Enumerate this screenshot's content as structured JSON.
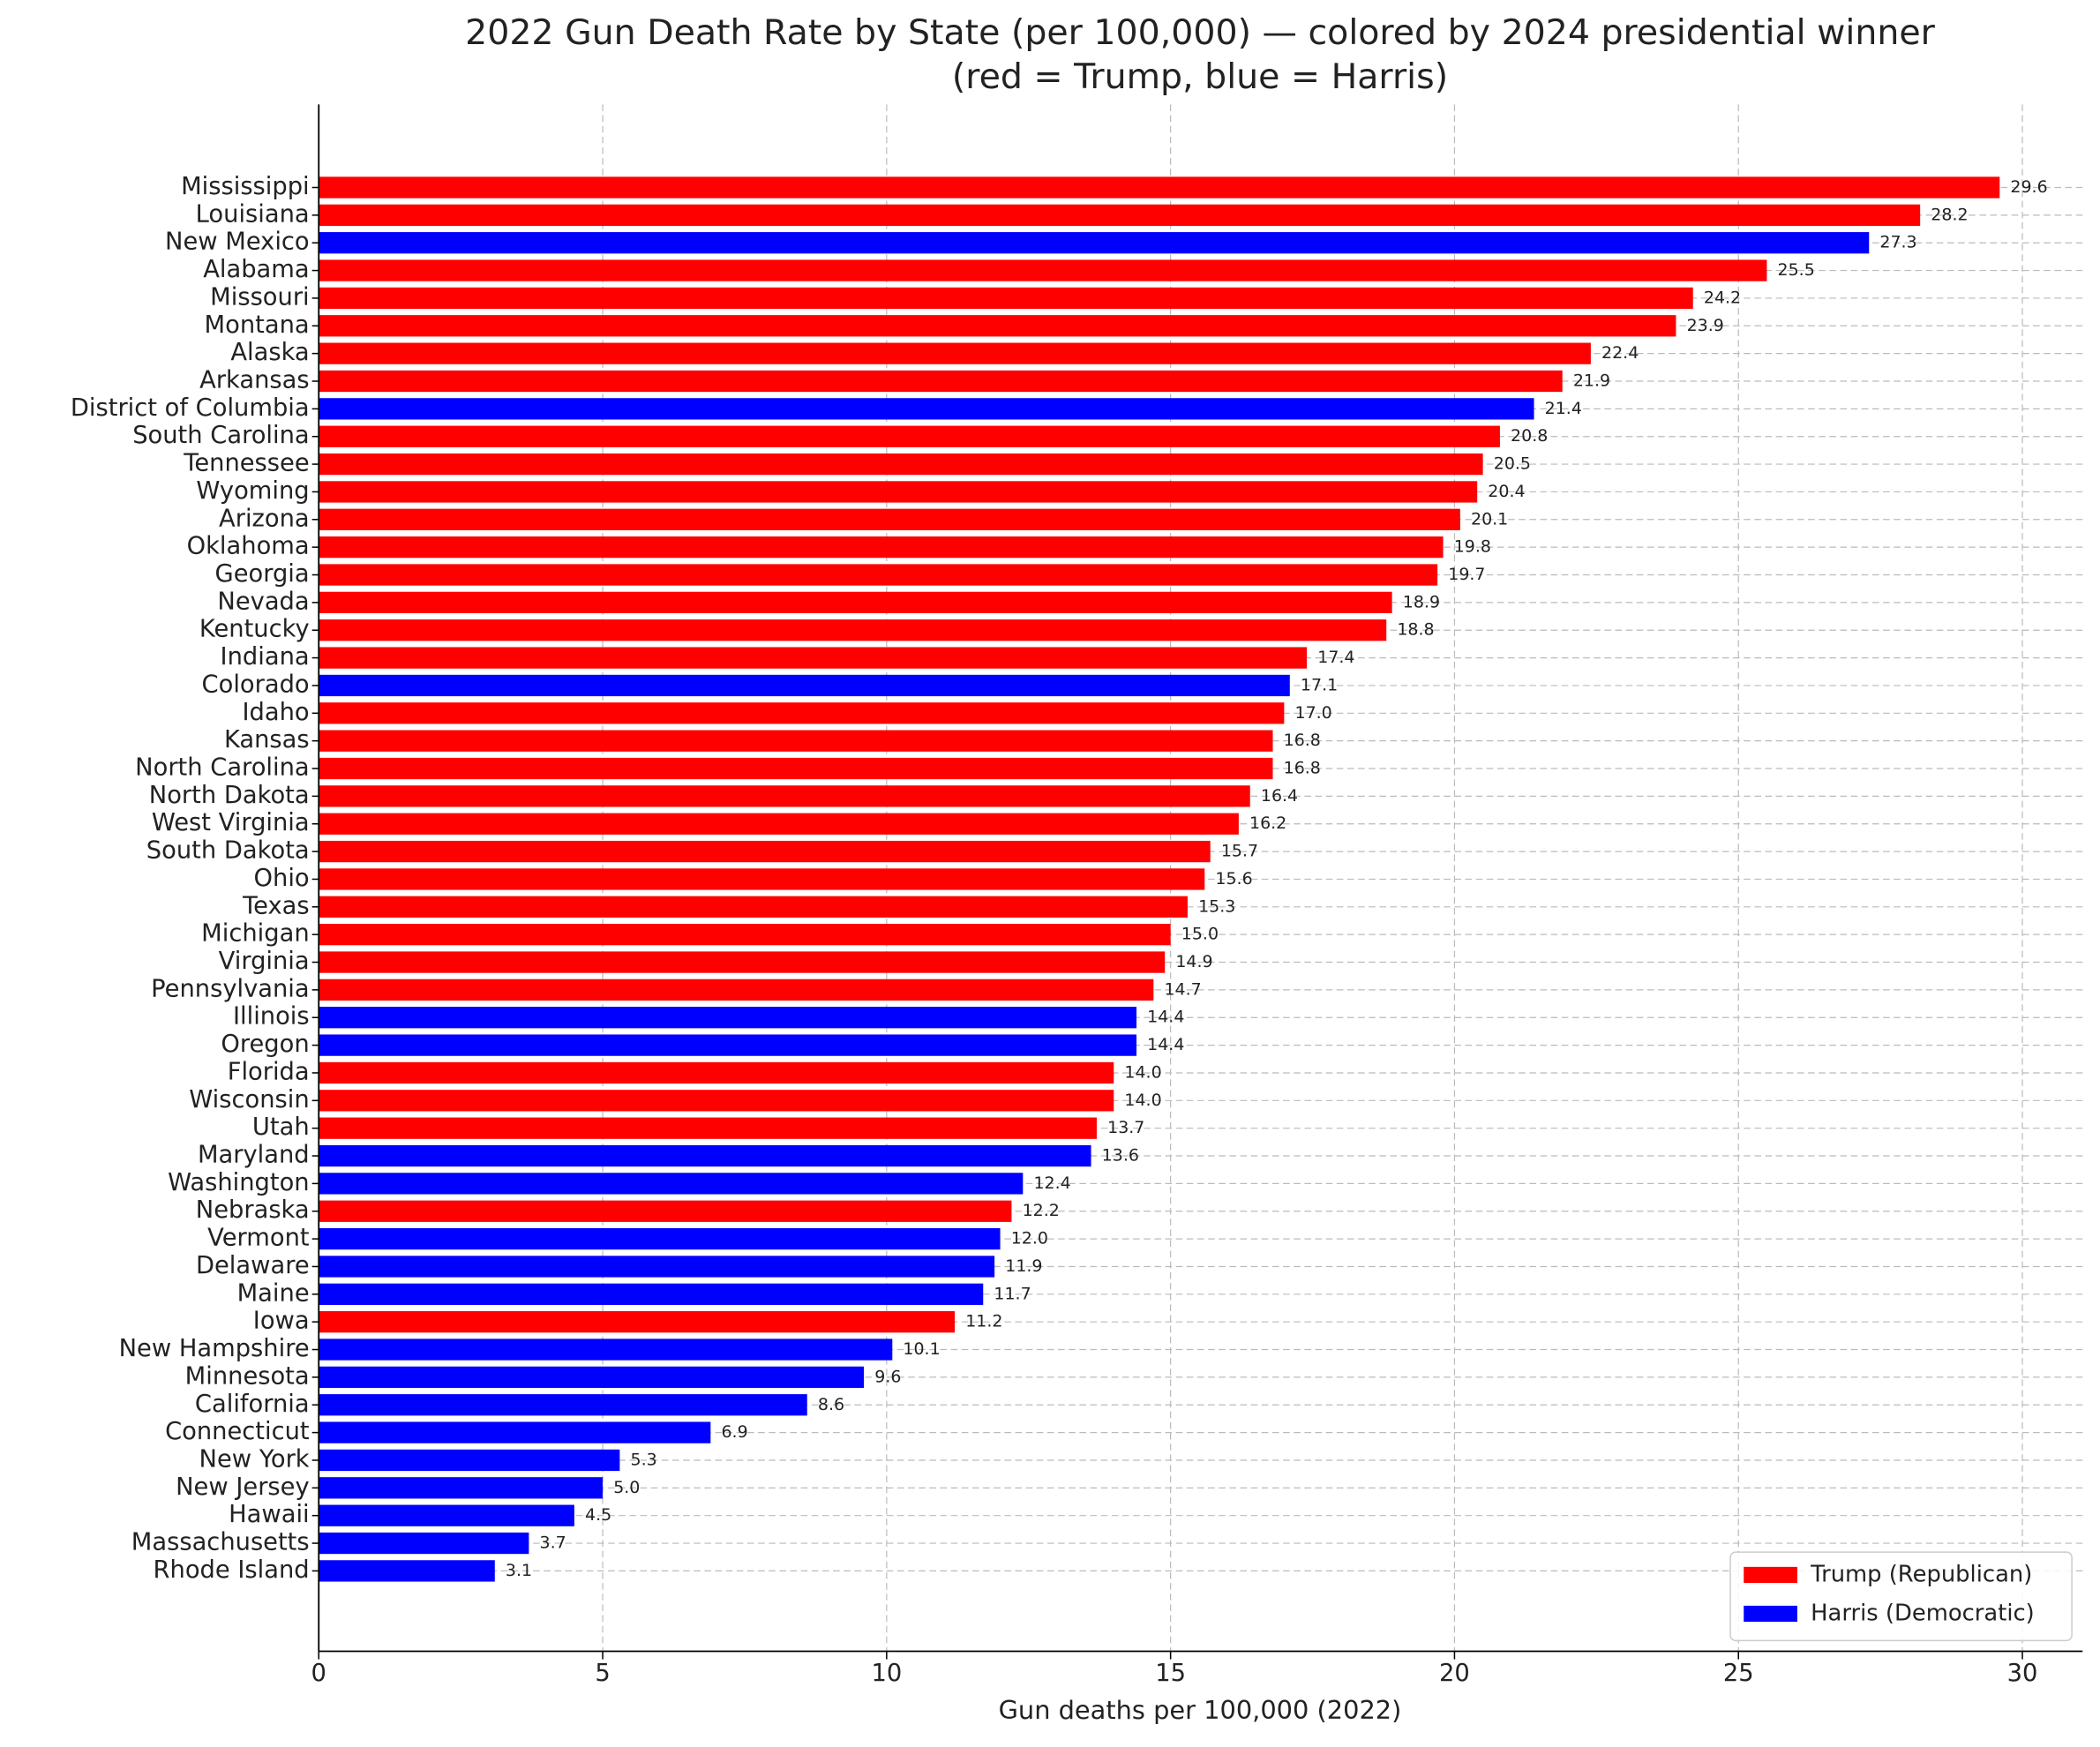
{
  "chart_data": {
    "type": "barh",
    "title": "2022 Gun Death Rate by State (per 100,000) — colored by 2024 presidential winner",
    "subtitle": "(red = Trump, blue = Harris)",
    "xlabel": "Gun deaths per 100,000 (2022)",
    "categories": [
      "Mississippi",
      "Louisiana",
      "New Mexico",
      "Alabama",
      "Missouri",
      "Montana",
      "Alaska",
      "Arkansas",
      "District of Columbia",
      "South Carolina",
      "Tennessee",
      "Wyoming",
      "Arizona",
      "Oklahoma",
      "Georgia",
      "Nevada",
      "Kentucky",
      "Indiana",
      "Colorado",
      "Idaho",
      "Kansas",
      "North Carolina",
      "North Dakota",
      "West Virginia",
      "South Dakota",
      "Ohio",
      "Texas",
      "Michigan",
      "Virginia",
      "Pennsylvania",
      "Illinois",
      "Oregon",
      "Florida",
      "Wisconsin",
      "Utah",
      "Maryland",
      "Washington",
      "Nebraska",
      "Vermont",
      "Delaware",
      "Maine",
      "Iowa",
      "New Hampshire",
      "Minnesota",
      "California",
      "Connecticut",
      "New York",
      "New Jersey",
      "Hawaii",
      "Massachusetts",
      "Rhode Island"
    ],
    "series": [
      {
        "name": "Trump (Republican)",
        "color": "#ff0000",
        "values": [
          29.6,
          28.2,
          null,
          25.5,
          24.2,
          23.9,
          22.4,
          21.9,
          null,
          20.8,
          20.5,
          20.4,
          20.1,
          19.8,
          19.7,
          18.9,
          18.8,
          17.4,
          null,
          17.0,
          16.8,
          16.8,
          16.4,
          16.2,
          15.7,
          15.6,
          15.3,
          15.0,
          14.9,
          14.7,
          null,
          null,
          14.0,
          14.0,
          13.7,
          null,
          null,
          12.2,
          null,
          null,
          null,
          11.2,
          null,
          null,
          null,
          null,
          null,
          null,
          null,
          null,
          null
        ],
        "value_labels": [
          "29.6",
          "28.2",
          null,
          "25.5",
          "24.2",
          "23.9",
          "22.4",
          "21.9",
          null,
          "20.8",
          "20.5",
          "20.4",
          "20.1",
          "19.8",
          "19.7",
          "18.9",
          "18.8",
          "17.4",
          null,
          "17.0",
          "16.8",
          "16.8",
          "16.4",
          "16.2",
          "15.7",
          "15.6",
          "15.3",
          "15.0",
          "14.9",
          "14.7",
          null,
          null,
          "14.0",
          "14.0",
          "13.7",
          null,
          null,
          "12.2",
          null,
          null,
          null,
          "11.2",
          null,
          null,
          null,
          null,
          null,
          null,
          null,
          null,
          null
        ]
      },
      {
        "name": "Harris (Democratic)",
        "color": "#0000ff",
        "values": [
          null,
          null,
          27.3,
          null,
          null,
          null,
          null,
          null,
          21.4,
          null,
          null,
          null,
          null,
          null,
          null,
          null,
          null,
          null,
          17.1,
          null,
          null,
          null,
          null,
          null,
          null,
          null,
          null,
          null,
          null,
          null,
          14.4,
          14.4,
          null,
          null,
          null,
          13.6,
          12.4,
          null,
          12.0,
          11.9,
          11.7,
          null,
          10.1,
          9.6,
          8.6,
          6.9,
          5.3,
          5.0,
          4.5,
          3.7,
          3.1
        ],
        "value_labels": [
          null,
          null,
          "27.3",
          null,
          null,
          null,
          null,
          null,
          "21.4",
          null,
          null,
          null,
          null,
          null,
          null,
          null,
          null,
          null,
          "17.1",
          null,
          null,
          null,
          null,
          null,
          null,
          null,
          null,
          null,
          null,
          null,
          "14.4",
          "14.4",
          null,
          null,
          null,
          "13.6",
          "12.4",
          null,
          "12.0",
          "11.9",
          "11.7",
          null,
          "10.1",
          "9.6",
          "8.6",
          "6.9",
          "5.3",
          "5.0",
          "4.5",
          "3.7",
          "3.1"
        ]
      }
    ],
    "xlim": [
      0,
      31.06
    ],
    "xticks": [
      0,
      5,
      10,
      15,
      20,
      25,
      30
    ],
    "grid": true,
    "legend": "lower right"
  }
}
